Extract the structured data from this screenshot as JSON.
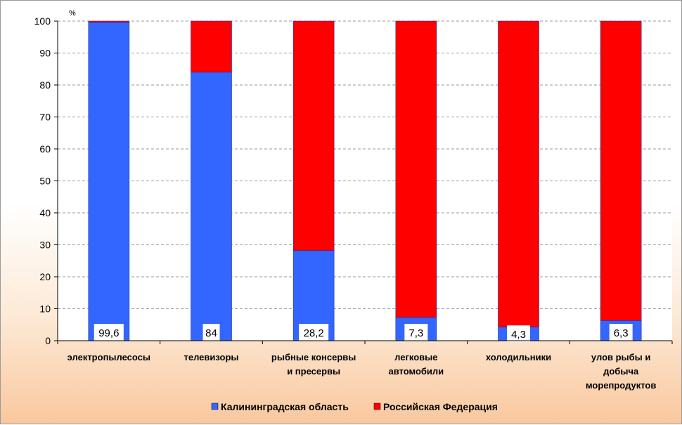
{
  "chart_data": {
    "type": "bar",
    "stacked": true,
    "unit_label": "%",
    "ylim": [
      0,
      100
    ],
    "yticks": [
      0,
      10,
      20,
      30,
      40,
      50,
      60,
      70,
      80,
      90,
      100
    ],
    "grid": "horizontal dashed",
    "legend_position": "bottom",
    "categories": [
      [
        "электропылесосы"
      ],
      [
        "телевизоры"
      ],
      [
        "рыбные консервы",
        "и пресервы"
      ],
      [
        "легковые",
        "автомобили"
      ],
      [
        "холодильники"
      ],
      [
        "улов рыбы и",
        "добыча",
        "морепродуктов"
      ]
    ],
    "series": [
      {
        "name": "Калининградская область",
        "color": "#3366ff",
        "values": [
          99.6,
          84,
          28.2,
          7.3,
          4.3,
          6.3
        ]
      },
      {
        "name": "Российская Федерация",
        "color": "#ff0000",
        "values": [
          0.4,
          16,
          71.8,
          92.7,
          95.7,
          93.7
        ]
      }
    ],
    "data_labels": [
      "99,6",
      "84",
      "28,2",
      "7,3",
      "4,3",
      "6,3"
    ]
  }
}
